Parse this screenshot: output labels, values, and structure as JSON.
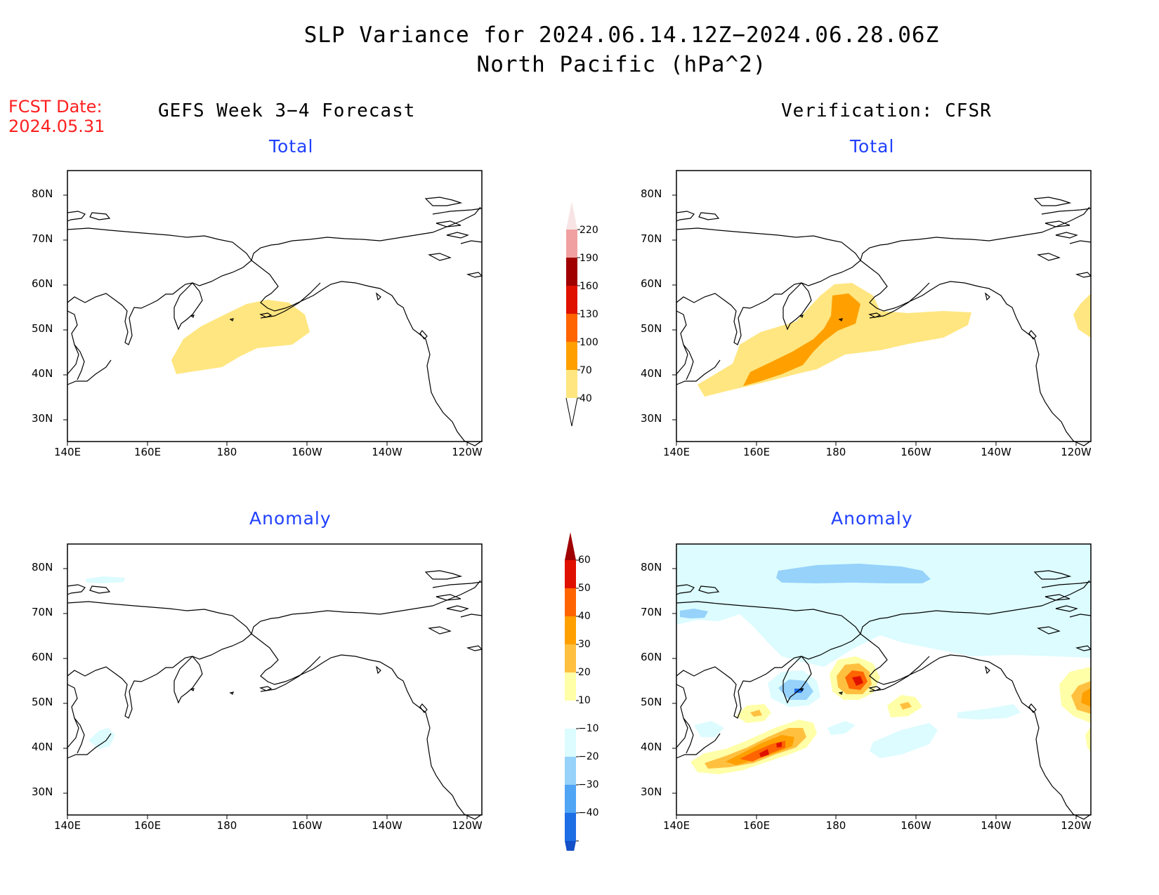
{
  "title": {
    "line1": "SLP Variance for 2024.06.14.12Z−2024.06.28.06Z",
    "line2": "North Pacific (hPa^2)"
  },
  "forecast_date": {
    "line1": "FCST Date:",
    "line2": "2024.05.31"
  },
  "columns": {
    "left": "GEFS Week 3−4 Forecast",
    "right": "Verification: CFSR"
  },
  "panels": {
    "top_left": "Total",
    "top_right": "Total",
    "bottom_left": "Anomaly",
    "bottom_right": "Anomaly"
  },
  "axes": {
    "lat_labels": [
      "80N",
      "70N",
      "60N",
      "50N",
      "40N",
      "30N"
    ],
    "lon_labels": [
      "140E",
      "160E",
      "180",
      "160W",
      "140W",
      "120W"
    ]
  },
  "colorbars": {
    "total": {
      "labels": [
        "220",
        "190",
        "160",
        "130",
        "100",
        "70",
        "40"
      ],
      "colors": [
        "#f8e4e4",
        "#f0a0a0",
        "#a00000",
        "#e01000",
        "#ff6400",
        "#ffa000",
        "#ffe680"
      ]
    },
    "anomaly": {
      "labels": [
        "60",
        "50",
        "40",
        "30",
        "20",
        "10",
        "−10",
        "−20",
        "−30",
        "−40"
      ],
      "colors": [
        "#a00000",
        "#e01000",
        "#ff6400",
        "#ffa000",
        "#ffc040",
        "#ffffa8",
        "#ffffff",
        "#dcfcff",
        "#96d2fa",
        "#50a5f5",
        "#1e6ee6",
        "#1450c8"
      ]
    }
  }
}
